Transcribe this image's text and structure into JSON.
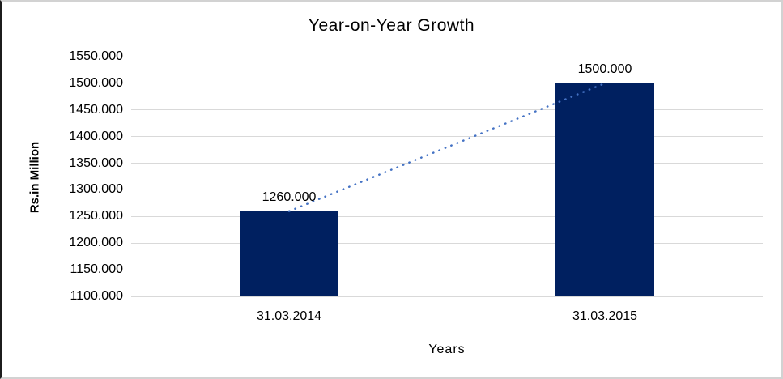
{
  "chart_data": {
    "type": "bar",
    "title": "Year-on-Year Growth",
    "categories": [
      "31.03.2014",
      "31.03.2015"
    ],
    "values": [
      1260,
      1500
    ],
    "data_labels": [
      "1260.000",
      "1500.000"
    ],
    "xlabel": "Years",
    "ylabel": "Rs.in Million",
    "ylim": [
      1100,
      1550
    ],
    "ytick_step": 50,
    "ytick_labels": [
      "1100.000",
      "1150.000",
      "1200.000",
      "1250.000",
      "1300.000",
      "1350.000",
      "1400.000",
      "1450.000",
      "1500.000",
      "1550.000"
    ],
    "grid": true,
    "legend": "none",
    "trendline": {
      "type": "linear",
      "style": "dotted",
      "from_value": 1260,
      "to_value": 1500
    },
    "colors": {
      "bar": "#002060",
      "trendline": "#4472c4",
      "gridline": "#d9d9d9",
      "text": "#000000"
    }
  }
}
